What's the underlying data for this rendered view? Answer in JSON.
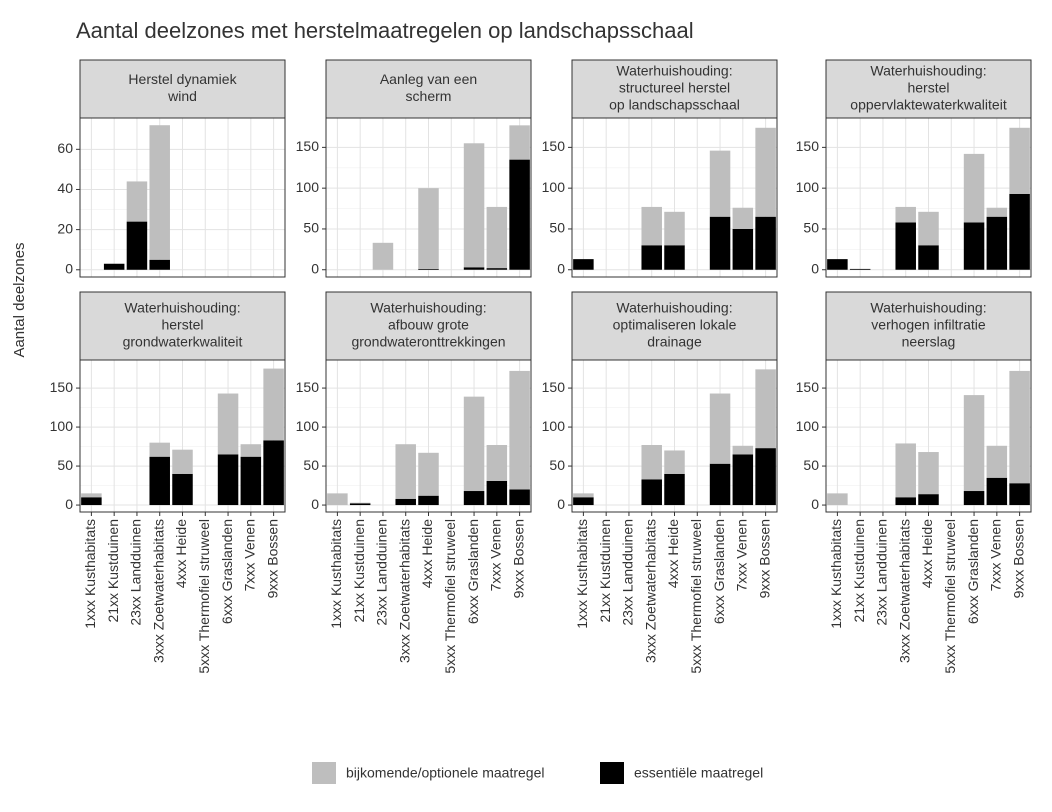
{
  "chart_data": {
    "type": "bar",
    "stacked": true,
    "title": "Aantal deelzones met herstelmaatregelen op landschapsschaal",
    "ylabel": "Aantal deelzones",
    "categories": [
      "1xxx Kusthabitats",
      "21xx Kustduinen",
      "23xx Landduinen",
      "3xxx Zoetwaterhabitats",
      "4xxx Heide",
      "5xxx Thermofiel struweel",
      "6xxx Graslanden",
      "7xxx Venen",
      "9xxx Bossen"
    ],
    "series": [
      {
        "name": "bijkomende/optionele maatregel",
        "color": "#bebebe"
      },
      {
        "name": "essentiële maatregel",
        "color": "#000000"
      }
    ],
    "facets": [
      {
        "title": [
          "Herstel dynamiek",
          "wind"
        ],
        "ylim": [
          -3.6,
          75.6
        ],
        "yticks": [
          0,
          20,
          40,
          60
        ],
        "values": [
          [
            0,
            0,
            20,
            67,
            0,
            0,
            0,
            0,
            0
          ],
          [
            0,
            3,
            24,
            5,
            0,
            0,
            0,
            0,
            0
          ]
        ]
      },
      {
        "title": [
          "Aanleg van een",
          "scherm"
        ],
        "ylim": [
          -8.9,
          186
        ],
        "yticks": [
          0,
          50,
          100,
          150
        ],
        "values": [
          [
            0,
            0,
            33,
            0,
            99,
            0,
            152,
            75,
            42
          ],
          [
            0,
            0,
            0,
            0,
            1,
            0,
            3,
            2,
            135
          ]
        ]
      },
      {
        "title": [
          "Waterhuishouding:",
          "structureel herstel",
          "op landschapsschaal"
        ],
        "ylim": [
          -8.9,
          186
        ],
        "yticks": [
          0,
          50,
          100,
          150
        ],
        "values": [
          [
            0,
            0,
            0,
            47,
            41,
            0,
            81,
            26,
            109
          ],
          [
            13,
            0,
            0,
            30,
            30,
            0,
            65,
            50,
            65
          ]
        ]
      },
      {
        "title": [
          "Waterhuishouding:",
          "herstel",
          "oppervlaktewaterkwaliteit"
        ],
        "ylim": [
          -8.9,
          186
        ],
        "yticks": [
          0,
          50,
          100,
          150
        ],
        "values": [
          [
            0,
            0,
            0,
            19,
            41,
            0,
            84,
            11,
            81
          ],
          [
            13,
            1,
            0,
            58,
            30,
            0,
            58,
            65,
            93
          ]
        ]
      },
      {
        "title": [
          "Waterhuishouding:",
          "herstel",
          "grondwaterkwaliteit"
        ],
        "ylim": [
          -8.9,
          186
        ],
        "yticks": [
          0,
          50,
          100,
          150
        ],
        "values": [
          [
            5,
            0,
            0,
            18,
            31,
            0,
            78,
            16,
            92
          ],
          [
            10,
            0,
            0,
            62,
            40,
            0,
            65,
            62,
            83
          ]
        ]
      },
      {
        "title": [
          "Waterhuishouding:",
          "afbouw grote",
          "grondwateronttrekkingen"
        ],
        "ylim": [
          -8.9,
          186
        ],
        "yticks": [
          0,
          50,
          100,
          150
        ],
        "values": [
          [
            15,
            1,
            0,
            70,
            55,
            0,
            121,
            46,
            152
          ],
          [
            0,
            2,
            0,
            8,
            12,
            0,
            18,
            31,
            20
          ]
        ]
      },
      {
        "title": [
          "Waterhuishouding:",
          "optimaliseren lokale",
          "drainage"
        ],
        "ylim": [
          -8.9,
          186
        ],
        "yticks": [
          0,
          50,
          100,
          150
        ],
        "values": [
          [
            5,
            0,
            0,
            44,
            30,
            0,
            90,
            11,
            101
          ],
          [
            10,
            0,
            0,
            33,
            40,
            0,
            53,
            65,
            73
          ]
        ]
      },
      {
        "title": [
          "Waterhuishouding:",
          "verhogen infiltratie",
          "neerslag"
        ],
        "ylim": [
          -8.9,
          186
        ],
        "yticks": [
          0,
          50,
          100,
          150
        ],
        "values": [
          [
            15,
            0,
            0,
            69,
            54,
            0,
            123,
            41,
            144
          ],
          [
            0,
            0,
            0,
            10,
            14,
            0,
            18,
            35,
            28
          ]
        ]
      }
    ]
  }
}
